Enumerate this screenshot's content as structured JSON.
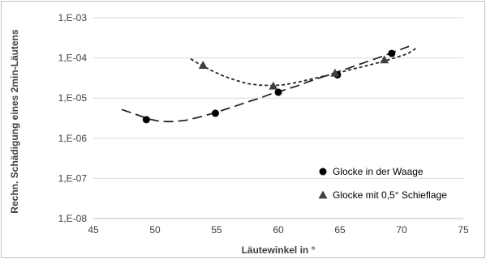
{
  "chart_data": {
    "type": "scatter",
    "title": "",
    "xlabel": "Läutewinkel in °",
    "ylabel": "Rechn. Schädigung eines 2min-Läutens",
    "x_ticks": [
      45,
      50,
      55,
      60,
      65,
      70,
      75
    ],
    "x_tick_labels": [
      "45",
      "50",
      "55",
      "60",
      "65",
      "70",
      "75"
    ],
    "xlim": [
      45,
      75
    ],
    "y_scale": "log",
    "y_ticks": [
      1e-08,
      1e-07,
      1e-06,
      1e-05,
      0.0001,
      0.001
    ],
    "y_tick_labels": [
      "1,E-08",
      "1,E-07",
      "1,E-06",
      "1,E-05",
      "1,E-04",
      "1,E-03"
    ],
    "ylim": [
      1e-08,
      0.001
    ],
    "grid": "horizontal",
    "legend_position": "bottom-right",
    "series": [
      {
        "name": "Glocke in der Waage",
        "marker": "circle",
        "color": "#000000",
        "x": [
          49.3,
          54.9,
          60.0,
          64.8,
          69.2
        ],
        "y": [
          2.9e-06,
          4.2e-06,
          1.4e-05,
          3.8e-05,
          0.00013
        ],
        "trend": {
          "style": "long-dash",
          "x": [
            47.3,
            48.5,
            49.5,
            50.5,
            51.5,
            52.5,
            53.5,
            54.5,
            55.5,
            56.5,
            57.5,
            58.5,
            59.5,
            60.5,
            61.5,
            62.5,
            63.5,
            64.5,
            65.5,
            66.5,
            67.5,
            68.5,
            69.5,
            70.6
          ],
          "y": [
            5.2e-06,
            3.9e-06,
            3e-06,
            2.6e-06,
            2.6e-06,
            2.8e-06,
            3.3e-06,
            4e-06,
            5e-06,
            6.3e-06,
            8e-06,
            1e-05,
            1.3e-05,
            1.6e-05,
            2e-05,
            2.6e-05,
            3.3e-05,
            4.2e-05,
            5.3e-05,
            6.8e-05,
            8.7e-05,
            0.000112,
            0.000145,
            0.000195
          ]
        }
      },
      {
        "name": "Glocke mit 0,5° Schieflage",
        "marker": "triangle",
        "color": "#404040",
        "x": [
          53.9,
          59.6,
          64.6,
          68.6
        ],
        "y": [
          6.6e-05,
          2e-05,
          4.2e-05,
          9e-05
        ],
        "trend": {
          "style": "short-dash",
          "x": [
            52.9,
            53.5,
            54.5,
            55.5,
            56.5,
            57.5,
            58.5,
            59.5,
            60.5,
            61.5,
            62.5,
            63.5,
            64.5,
            65.5,
            66.5,
            67.5,
            68.5,
            69.5,
            70.5,
            71.2
          ],
          "y": [
            9.5e-05,
            7.3e-05,
            5e-05,
            3.6e-05,
            2.8e-05,
            2.3e-05,
            2.1e-05,
            2.05e-05,
            2.15e-05,
            2.45e-05,
            2.9e-05,
            3.4e-05,
            4e-05,
            4.8e-05,
            5.7e-05,
            6.8e-05,
            8.2e-05,
            0.000102,
            0.000128,
            0.000175
          ]
        }
      }
    ]
  }
}
